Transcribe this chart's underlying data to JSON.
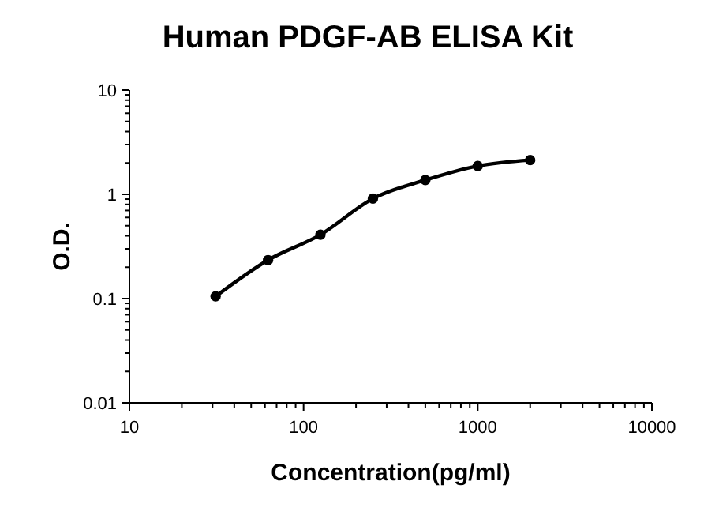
{
  "chart_data": {
    "type": "line",
    "title": "Human PDGF-AB ELISA Kit",
    "xlabel": "Concentration(pg/ml)",
    "ylabel": "O.D.",
    "x": [
      31.25,
      62.5,
      125,
      250,
      500,
      1000,
      2000
    ],
    "series": [
      {
        "color": "#000000",
        "values": [
          0.105,
          0.234,
          0.41,
          0.91,
          1.37,
          1.87,
          2.13
        ]
      }
    ],
    "log": "xy",
    "xlim": [
      10,
      10000
    ],
    "xticks": [
      10,
      100,
      1000,
      10000
    ],
    "ylim": [
      0.01,
      10
    ],
    "yticks": [
      0.01,
      0.1,
      1,
      10
    ],
    "marker": "circle",
    "line_style": "solid",
    "grid": false
  }
}
